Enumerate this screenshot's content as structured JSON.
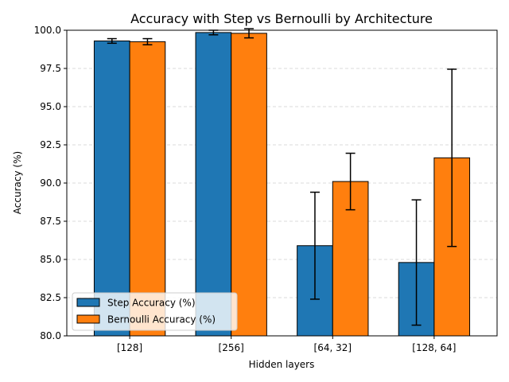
{
  "chart_data": {
    "type": "bar",
    "title": "Accuracy with Step vs Bernoulli by Architecture",
    "xlabel": "Hidden layers",
    "ylabel": "Accuracy (%)",
    "categories": [
      "[128]",
      "[256]",
      "[64, 32]",
      "[128, 64]"
    ],
    "ylim": [
      80.0,
      100.0
    ],
    "yticks": [
      "80.0",
      "82.5",
      "85.0",
      "87.5",
      "90.0",
      "92.5",
      "95.0",
      "97.5",
      "100.0"
    ],
    "grid": "y-dashed",
    "legend_position": "lower-left",
    "series": [
      {
        "name": "Step Accuracy (%)",
        "color": "#1f77b4",
        "values": [
          99.3,
          99.85,
          85.9,
          84.8
        ],
        "errors": [
          0.15,
          0.15,
          3.5,
          4.1
        ]
      },
      {
        "name": "Bernoulli Accuracy (%)",
        "color": "#ff7f0e",
        "values": [
          99.25,
          99.8,
          90.1,
          91.65
        ],
        "errors": [
          0.2,
          0.3,
          1.85,
          5.8
        ]
      }
    ]
  }
}
